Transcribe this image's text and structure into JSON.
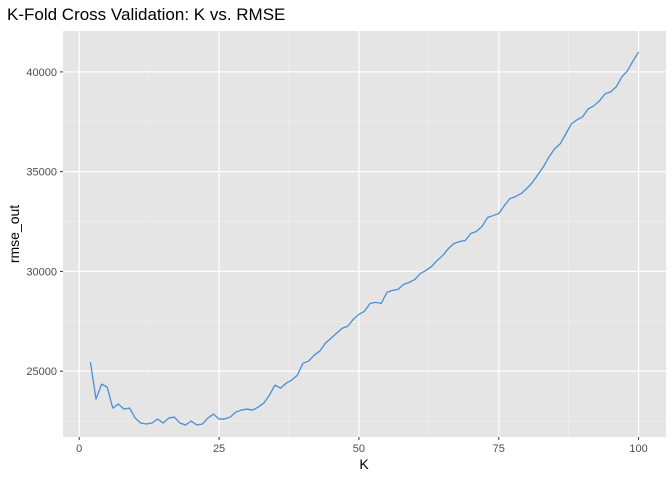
{
  "chart_data": {
    "type": "line",
    "title": "K-Fold Cross Validation: K vs. RMSE",
    "xlabel": "K",
    "ylabel": "rmse_out",
    "xlim": [
      -2.9,
      104.9
    ],
    "ylim": [
      21700,
      42050
    ],
    "x_ticks": [
      0,
      25,
      50,
      75,
      100
    ],
    "y_ticks": [
      25000,
      30000,
      35000,
      40000
    ],
    "x_tick_labels": [
      "0",
      "25",
      "50",
      "75",
      "100"
    ],
    "y_tick_labels": [
      "25000",
      "30000",
      "35000",
      "40000"
    ],
    "grid": true,
    "series": [
      {
        "color": "#4a8fd8",
        "x": [
          2,
          3,
          4,
          5,
          6,
          7,
          8,
          9,
          10,
          11,
          12,
          13,
          14,
          15,
          16,
          17,
          18,
          19,
          20,
          21,
          22,
          23,
          24,
          25,
          26,
          27,
          28,
          29,
          30,
          31,
          32,
          33,
          34,
          35,
          36,
          37,
          38,
          39,
          40,
          41,
          42,
          43,
          44,
          45,
          46,
          47,
          48,
          49,
          50,
          51,
          52,
          53,
          54,
          55,
          56,
          57,
          58,
          59,
          60,
          61,
          62,
          63,
          64,
          65,
          66,
          67,
          68,
          69,
          70,
          71,
          72,
          73,
          74,
          75,
          76,
          77,
          78,
          79,
          80,
          81,
          82,
          83,
          84,
          85,
          86,
          87,
          88,
          89,
          90,
          91,
          92,
          93,
          94,
          95,
          96,
          97,
          98,
          99,
          100
        ],
        "values": [
          25450,
          23600,
          24350,
          24200,
          23150,
          23350,
          23100,
          23150,
          22650,
          22400,
          22350,
          22400,
          22600,
          22400,
          22650,
          22700,
          22400,
          22300,
          22500,
          22300,
          22350,
          22650,
          22850,
          22600,
          22600,
          22700,
          22950,
          23050,
          23100,
          23050,
          23200,
          23400,
          23800,
          24300,
          24150,
          24400,
          24550,
          24800,
          25400,
          25500,
          25800,
          26000,
          26400,
          26650,
          26900,
          27150,
          27250,
          27600,
          27850,
          28000,
          28400,
          28450,
          28400,
          28950,
          29050,
          29100,
          29350,
          29450,
          29600,
          29900,
          30050,
          30250,
          30550,
          30800,
          31150,
          31400,
          31500,
          31550,
          31900,
          32000,
          32250,
          32700,
          32800,
          32900,
          33300,
          33650,
          33750,
          33900,
          34150,
          34450,
          34850,
          35250,
          35750,
          36150,
          36400,
          36900,
          37400,
          37600,
          37750,
          38150,
          38300,
          38550,
          38900,
          39000,
          39250,
          39750,
          40050,
          40550,
          41000
        ]
      }
    ]
  }
}
